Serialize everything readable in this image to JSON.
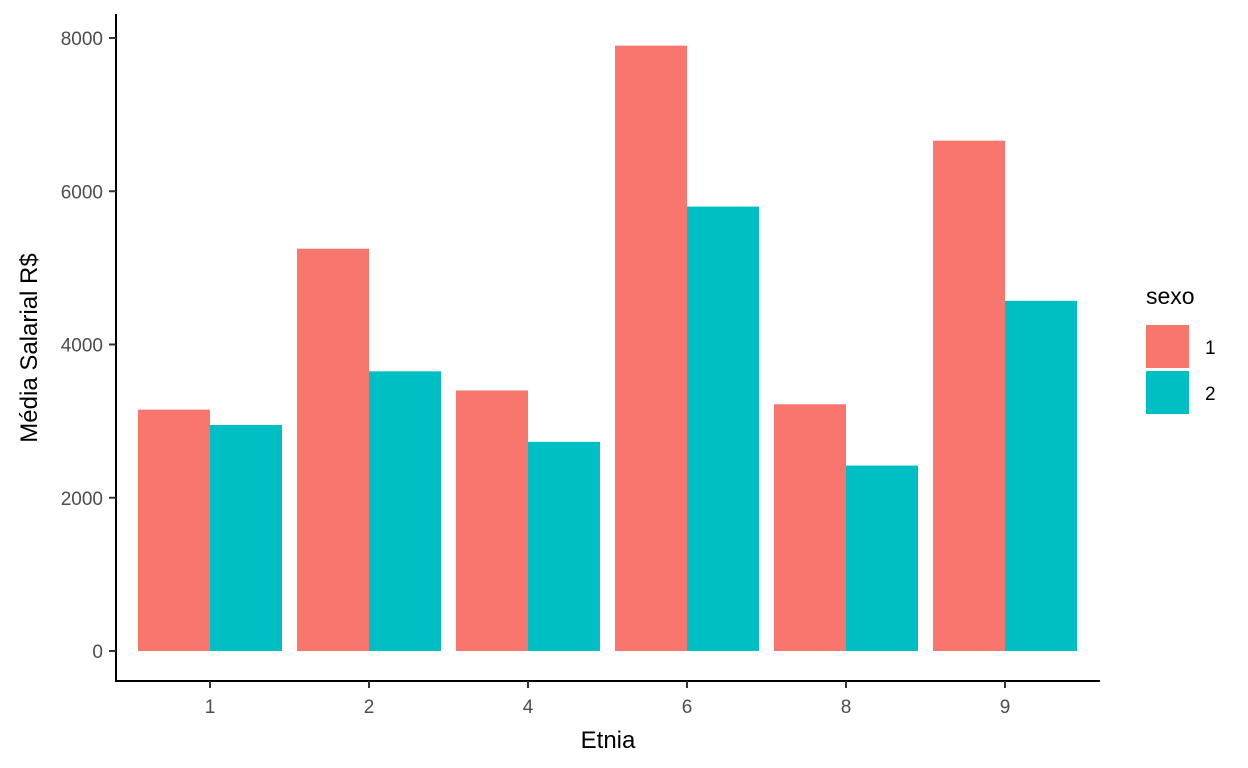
{
  "chart_data": {
    "type": "bar",
    "title": "",
    "xlabel": "Etnia",
    "ylabel": "Média Salarial R$",
    "categories": [
      "1",
      "2",
      "4",
      "6",
      "8",
      "9"
    ],
    "series": [
      {
        "name": "1",
        "color": "#F8766D",
        "values": [
          3150,
          5250,
          3400,
          7900,
          3220,
          6660
        ]
      },
      {
        "name": "2",
        "color": "#00BFC4",
        "values": [
          2950,
          3650,
          2730,
          5800,
          2420,
          4570
        ]
      }
    ],
    "ylim": [
      0,
      8000
    ],
    "y_ticks": [
      "0",
      "2000",
      "4000",
      "6000",
      "8000"
    ],
    "grid": false,
    "legend": {
      "title": "sexo",
      "placement": "right"
    }
  }
}
